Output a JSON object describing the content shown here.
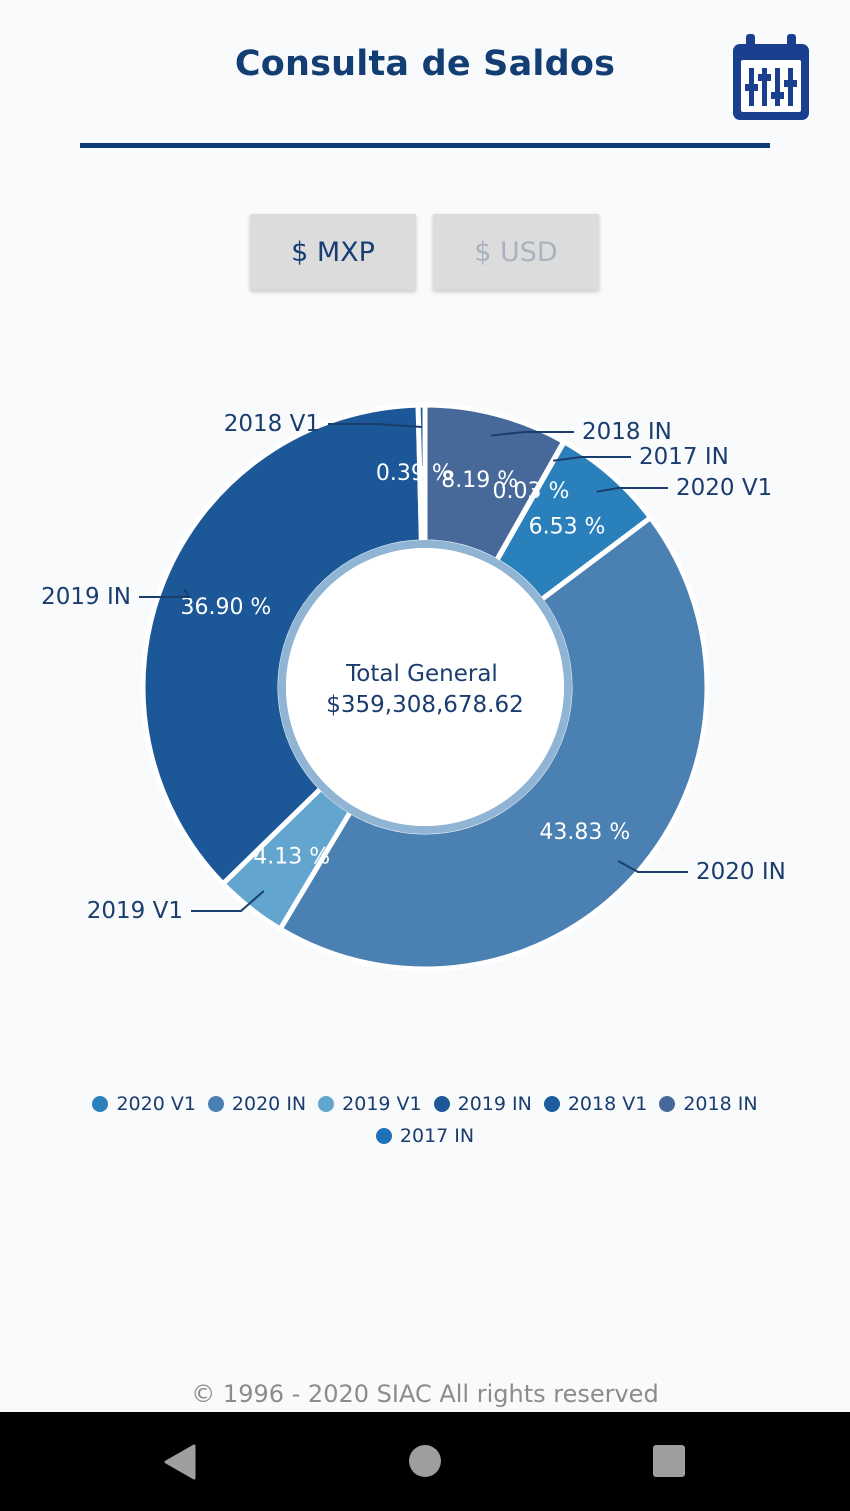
{
  "header": {
    "title": "Consulta de Saldos",
    "calendar_icon": "calendar-filter-icon"
  },
  "currency": {
    "mxp_label": "$ MXP",
    "usd_label": "$ USD",
    "selected": "mxp"
  },
  "colors": {
    "primary": "#0f3b74",
    "2020 V1": "#2a80bb",
    "2020 IN": "#4a80b2",
    "2019 V1": "#62a6d0",
    "2019 IN": "#1c5898",
    "2018 V1": "#1b5c9e",
    "2018 IN": "#46699a",
    "2017 IN": "#1e72b8"
  },
  "chart_data": {
    "type": "pie",
    "variant": "donut",
    "title": "",
    "center_label": "Total General",
    "center_value": "$359,308,678.62",
    "legend_position": "bottom",
    "slices": [
      {
        "name": "2018 IN",
        "value": 8.19,
        "label": "8.19 %"
      },
      {
        "name": "2017 IN",
        "value": 0.03,
        "label": "0.03 %"
      },
      {
        "name": "2020 V1",
        "value": 6.53,
        "label": "6.53 %"
      },
      {
        "name": "2020 IN",
        "value": 43.83,
        "label": "43.83 %"
      },
      {
        "name": "2019 V1",
        "value": 4.13,
        "label": "4.13 %"
      },
      {
        "name": "2019 IN",
        "value": 36.9,
        "label": "36.90 %"
      },
      {
        "name": "2018 V1",
        "value": 0.39,
        "label": "0.39 %"
      }
    ],
    "legend": [
      "2020 V1",
      "2020 IN",
      "2019 V1",
      "2019 IN",
      "2018 V1",
      "2018 IN",
      "2017 IN"
    ]
  },
  "footer": {
    "copyright": "© 1996 - 2020 SIAC All rights reserved"
  },
  "navbar": {
    "back_icon": "back-icon",
    "home_icon": "home-icon",
    "recents_icon": "recents-icon"
  }
}
